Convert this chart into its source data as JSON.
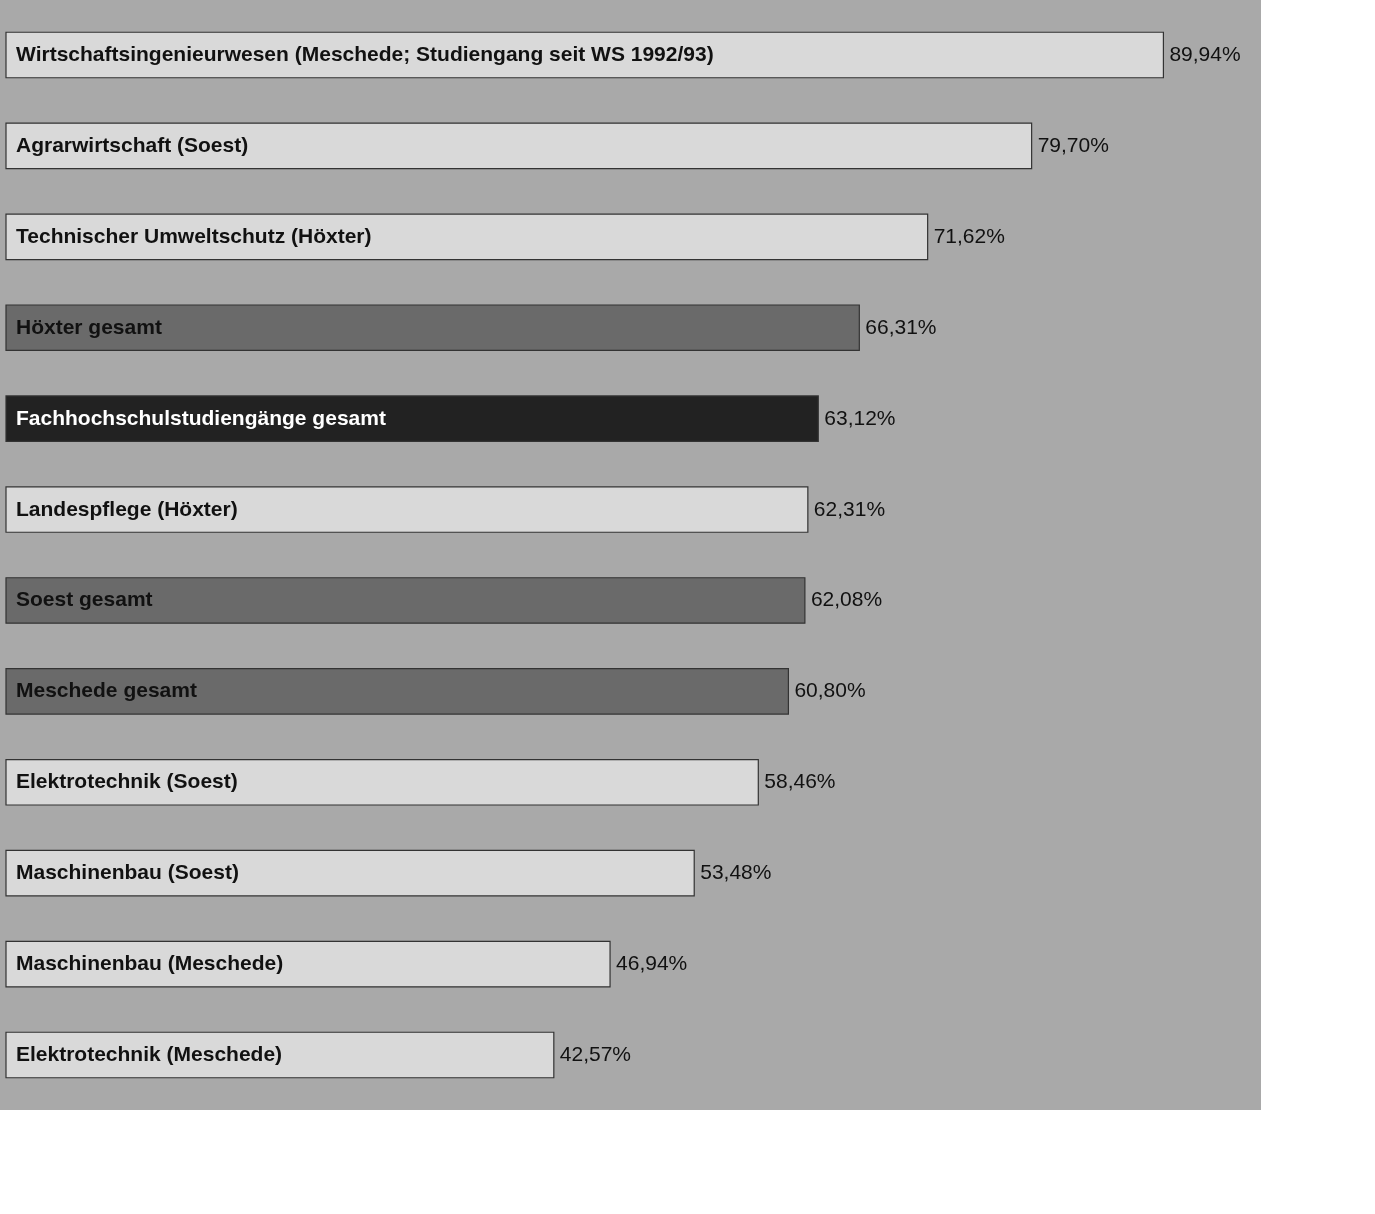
{
  "chart_data": {
    "type": "bar",
    "orientation": "horizontal",
    "categories": [
      "Wirtschaftsingenieurwesen (Meschede; Studiengang seit WS 1992/93)",
      "Agrarwirtschaft (Soest)",
      "Technischer Umweltschutz (Höxter)",
      "Höxter gesamt",
      "Fachhochschulstudiengänge gesamt",
      "Landespflege (Höxter)",
      "Soest gesamt",
      "Meschede gesamt",
      "Elektrotechnik (Soest)",
      "Maschinenbau (Soest)",
      "Maschinenbau (Meschede)",
      "Elektrotechnik (Meschede)"
    ],
    "values": [
      89.94,
      79.7,
      71.62,
      66.31,
      63.12,
      62.31,
      62.08,
      60.8,
      58.46,
      53.48,
      46.94,
      42.57
    ],
    "colors": [
      "#d9d9d9",
      "#d9d9d9",
      "#d9d9d9",
      "#6a6a6a",
      "#222222",
      "#d9d9d9",
      "#6a6a6a",
      "#6a6a6a",
      "#d9d9d9",
      "#d9d9d9",
      "#d9d9d9",
      "#d9d9d9"
    ],
    "value_labels": [
      "89,94%",
      "79,70%",
      "71,62%",
      "66,31%",
      "63,12%",
      "62,31%",
      "62,08%",
      "60,80%",
      "58,46%",
      "53,48%",
      "46,94%",
      "42,57%"
    ],
    "grid": false
  }
}
